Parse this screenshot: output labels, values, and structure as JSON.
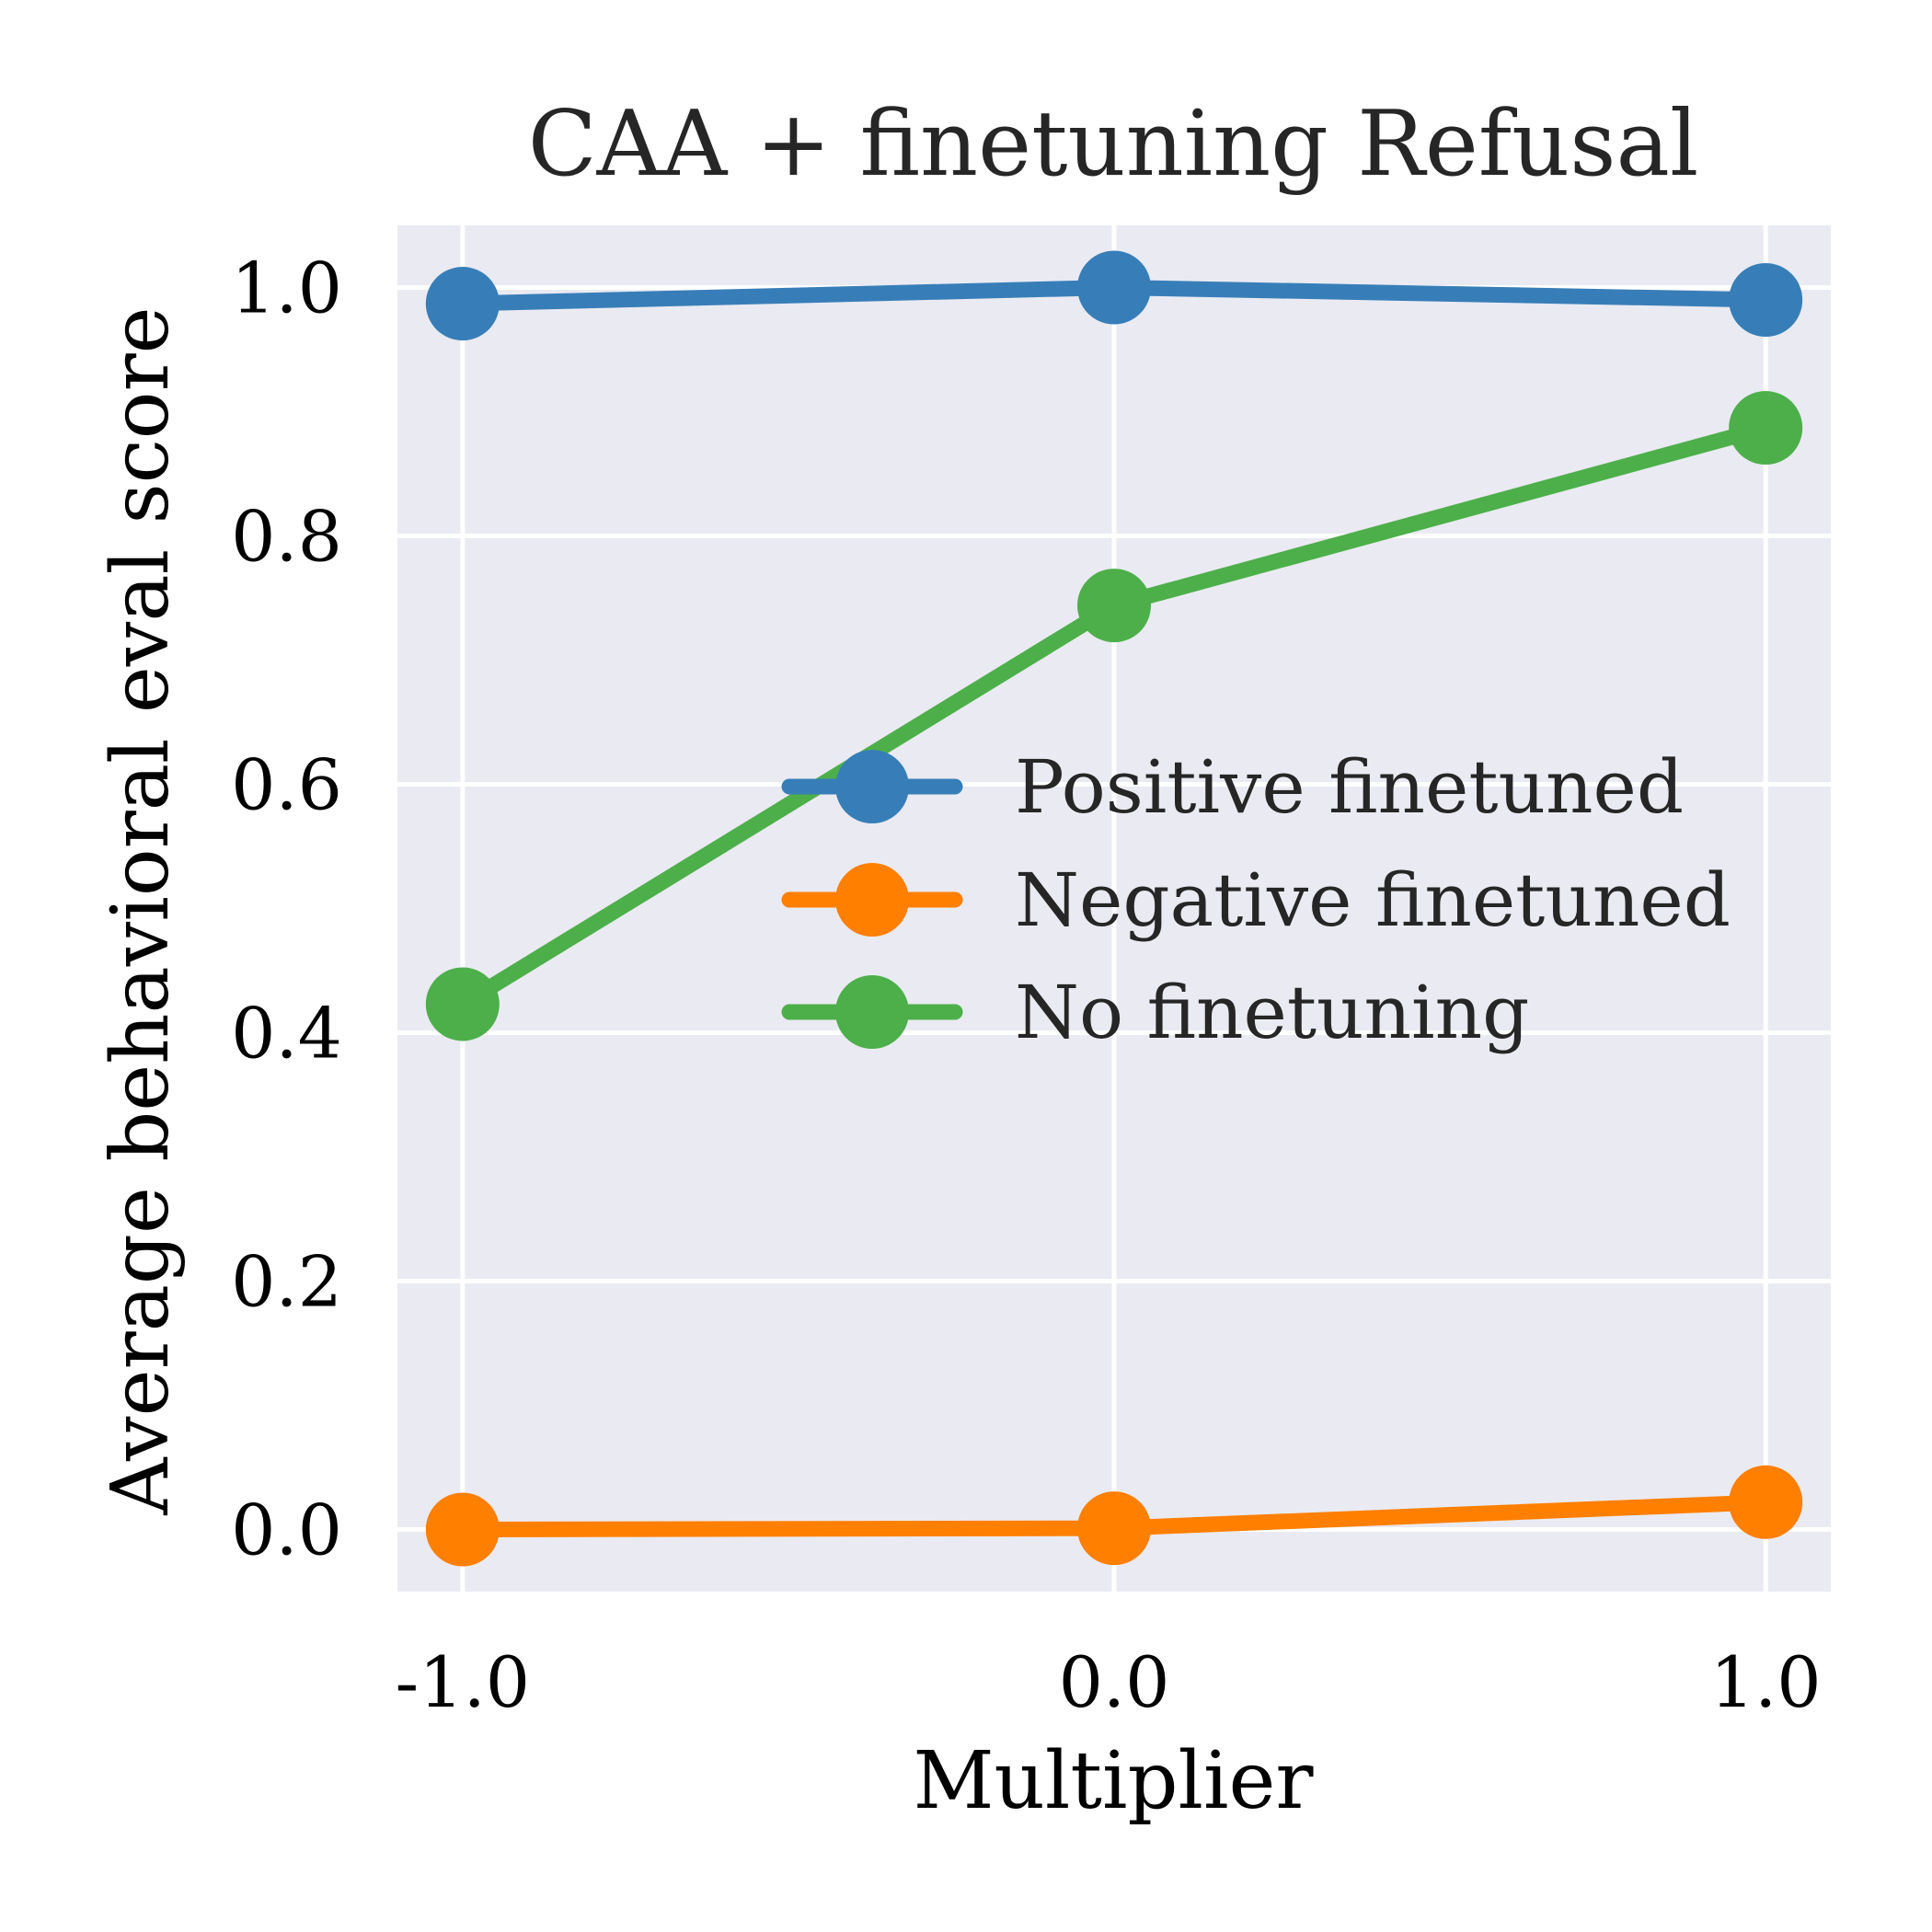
{
  "chart_data": {
    "type": "line",
    "title": "CAA + finetuning Refusal",
    "xlabel": "Multiplier",
    "ylabel": "Average behavioral eval score",
    "x": [
      -1.0,
      0.0,
      1.0
    ],
    "xticklabels": [
      "-1.0",
      "0.0",
      "1.0"
    ],
    "yticks": [
      0.0,
      0.2,
      0.4,
      0.6,
      0.8,
      1.0
    ],
    "yticklabels": [
      "0.0",
      "0.2",
      "0.4",
      "0.6",
      "0.8",
      "1.0"
    ],
    "xlim": [
      -1.1,
      1.1
    ],
    "ylim": [
      -0.05,
      1.05
    ],
    "grid": true,
    "legend_position": "center-right",
    "series": [
      {
        "name": "Positive finetuned",
        "color": "#377eb8",
        "values": [
          0.987,
          1.0,
          0.99
        ]
      },
      {
        "name": "Negative finetuned",
        "color": "#ff7f00",
        "values": [
          0.0,
          0.001,
          0.022
        ]
      },
      {
        "name": "No finetuning",
        "color": "#4daf4a",
        "values": [
          0.423,
          0.744,
          0.887
        ]
      }
    ],
    "background_color": "#eaeaf2",
    "grid_color": "#ffffff"
  }
}
